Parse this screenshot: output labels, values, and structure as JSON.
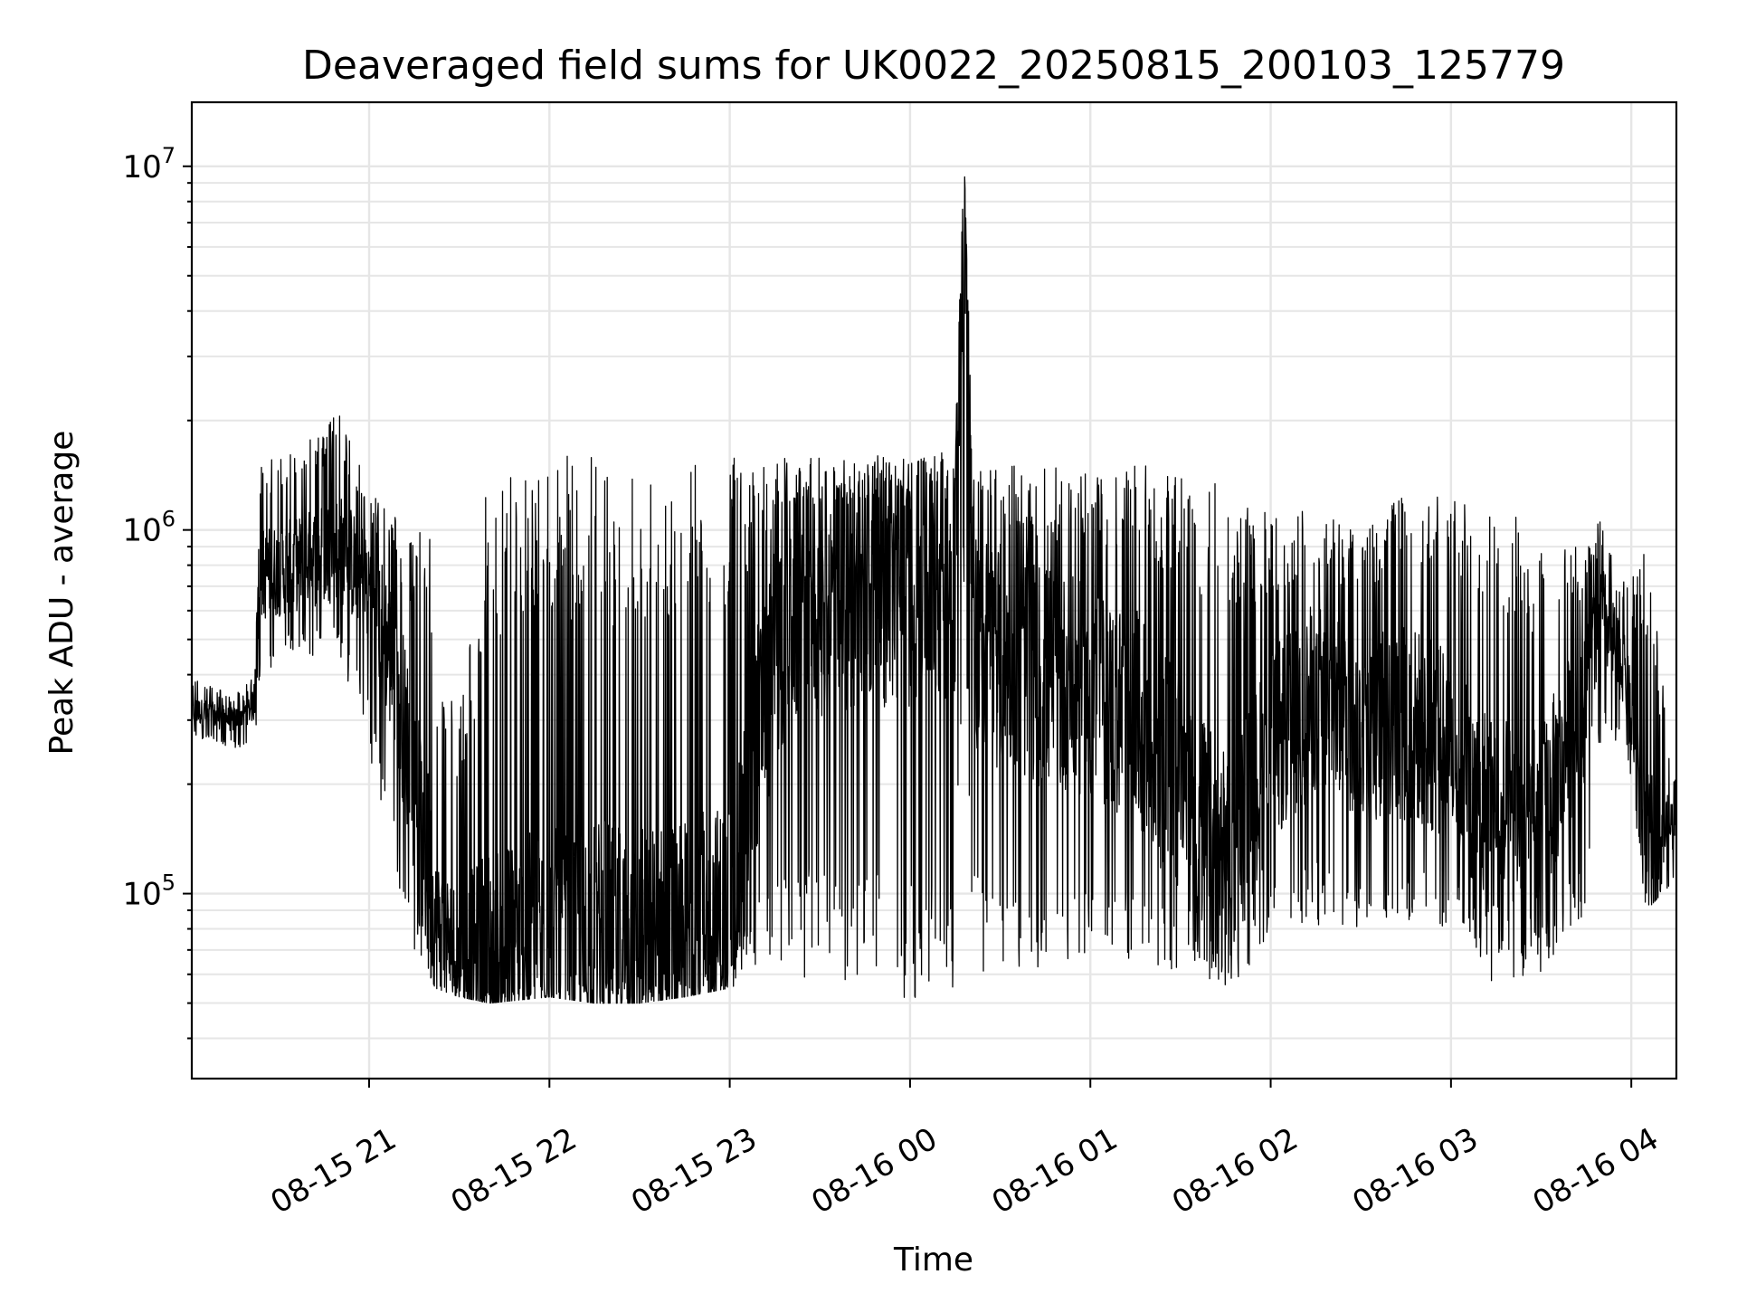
{
  "chart_data": {
    "type": "line",
    "title": "Deaveraged field sums for UK0022_20250815_200103_125779",
    "xlabel": "Time",
    "ylabel": "Peak ADU - average",
    "x_tick_labels": [
      "08-15 21",
      "08-15 22",
      "08-15 23",
      "08-16 00",
      "08-16 01",
      "08-16 02",
      "08-16 03",
      "08-16 04"
    ],
    "y_tick_labels": [
      {
        "base": "10",
        "exp": "5"
      },
      {
        "base": "10",
        "exp": "6"
      },
      {
        "base": "10",
        "exp": "7"
      }
    ],
    "xlim": [
      "2025-08-15 20:01",
      "2025-08-16 04:15"
    ],
    "ylim": [
      31000,
      15000000
    ],
    "y_scale": "log",
    "grid": true,
    "line_color": "#000000",
    "grid_color": "#e6e6e6",
    "x": [
      "2025-08-15 20:01",
      "2025-08-15 20:15",
      "2025-08-15 20:22",
      "2025-08-15 20:24",
      "2025-08-15 20:35",
      "2025-08-15 20:50",
      "2025-08-15 21:00",
      "2025-08-15 21:09",
      "2025-08-15 21:15",
      "2025-08-15 21:20",
      "2025-08-15 21:22",
      "2025-08-15 21:30",
      "2025-08-15 21:40",
      "2025-08-15 22:00",
      "2025-08-15 22:15",
      "2025-08-15 22:30",
      "2025-08-15 22:45",
      "2025-08-15 23:00",
      "2025-08-15 23:10",
      "2025-08-15 23:20",
      "2025-08-15 23:40",
      "2025-08-16 00:00",
      "2025-08-16 00:15",
      "2025-08-16 00:18",
      "2025-08-16 00:21",
      "2025-08-16 00:30",
      "2025-08-16 00:45",
      "2025-08-16 01:00",
      "2025-08-16 01:15",
      "2025-08-16 01:30",
      "2025-08-16 01:45",
      "2025-08-16 02:00",
      "2025-08-16 02:15",
      "2025-08-16 02:30",
      "2025-08-16 02:45",
      "2025-08-16 03:00",
      "2025-08-16 03:15",
      "2025-08-16 03:30",
      "2025-08-16 03:45",
      "2025-08-16 03:50",
      "2025-08-16 03:58",
      "2025-08-16 04:05",
      "2025-08-16 04:15"
    ],
    "y": [
      320000,
      300000,
      330000,
      750000,
      800000,
      900000,
      700000,
      400000,
      200000,
      110000,
      80000,
      70000,
      65000,
      70000,
      75000,
      72000,
      75000,
      85000,
      300000,
      600000,
      650000,
      700000,
      750000,
      10500000,
      500000,
      450000,
      400000,
      350000,
      300000,
      200000,
      120000,
      250000,
      350000,
      280000,
      300000,
      250000,
      150000,
      160000,
      350000,
      600000,
      400000,
      130000,
      160000
    ],
    "y_min_envelope": [
      270000,
      250000,
      260000,
      400000,
      450000,
      450000,
      250000,
      100000,
      70000,
      60000,
      55000,
      52000,
      50000,
      52000,
      50000,
      50000,
      52000,
      55000,
      60000,
      60000,
      55000,
      50000,
      55000,
      500000,
      60000,
      60000,
      60000,
      70000,
      65000,
      60000,
      55000,
      70000,
      80000,
      80000,
      80000,
      80000,
      55000,
      60000,
      90000,
      250000,
      250000,
      90000,
      110000
    ],
    "y_max_envelope": [
      400000,
      350000,
      400000,
      1500000,
      1700000,
      2100000,
      1300000,
      1100000,
      900000,
      1200000,
      450000,
      300000,
      1500000,
      1600000,
      1600000,
      1500000,
      1600000,
      1600000,
      1600000,
      1600000,
      1600000,
      1600000,
      1700000,
      10500000,
      1500000,
      1500000,
      1500000,
      1500000,
      1500000,
      1500000,
      1300000,
      1100000,
      1200000,
      1000000,
      1400000,
      1200000,
      1300000,
      900000,
      900000,
      1100000,
      700000,
      900000,
      200000
    ]
  }
}
